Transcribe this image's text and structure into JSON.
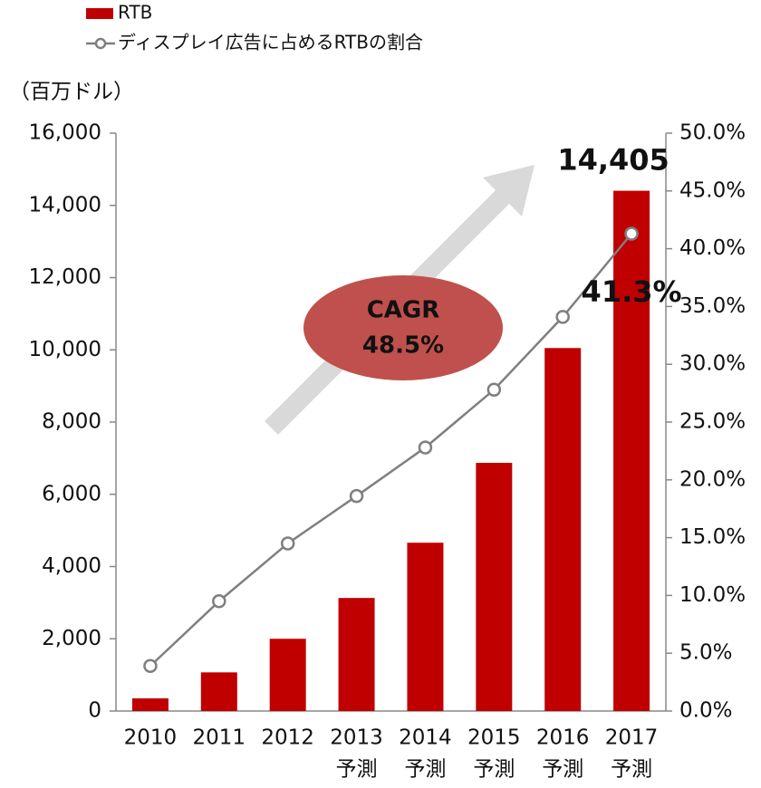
{
  "chart_data": {
    "type": "bar",
    "unit_label": "（百万ドル）",
    "categories": [
      [
        "2010"
      ],
      [
        "2011"
      ],
      [
        "2012"
      ],
      [
        "2013",
        "予測"
      ],
      [
        "2014",
        "予測"
      ],
      [
        "2015",
        "予測"
      ],
      [
        "2016",
        "予測"
      ],
      [
        "2017",
        "予測"
      ]
    ],
    "series": [
      {
        "name": "RTB",
        "type": "bar",
        "color": "#c00000",
        "values": [
          350,
          1070,
          2000,
          3130,
          4660,
          6870,
          10050,
          14405
        ],
        "value_labels": [
          null,
          null,
          null,
          null,
          null,
          null,
          null,
          "14,405"
        ]
      },
      {
        "name": "ディスプレイ広告に占めるRTBの割合",
        "type": "line",
        "axis": "y2",
        "color": "#7f7f7f",
        "values": [
          3.9,
          9.5,
          14.5,
          18.6,
          22.8,
          27.8,
          34.1,
          41.3
        ],
        "value_labels": [
          null,
          null,
          null,
          null,
          null,
          null,
          null,
          "41.3%"
        ]
      }
    ],
    "ylim": [
      0,
      16000
    ],
    "yticks": [
      0,
      {
        "value": 2000,
        "label": "2,000"
      },
      {
        "value": 4000,
        "label": "4,000"
      },
      {
        "value": 6000,
        "label": "6,000"
      },
      {
        "value": 8000,
        "label": "8,000"
      },
      {
        "value": 10000,
        "label": "10,000"
      },
      {
        "value": 12000,
        "label": "12,000"
      },
      {
        "value": 14000,
        "label": "14,000"
      },
      {
        "value": 16000,
        "label": "16,000"
      }
    ],
    "y2lim": [
      0,
      50
    ],
    "y2ticks": [
      {
        "value": 0,
        "label": "0.0%"
      },
      {
        "value": 5,
        "label": "5.0%"
      },
      {
        "value": 10,
        "label": "10.0%"
      },
      {
        "value": 15,
        "label": "15.0%"
      },
      {
        "value": 20,
        "label": "20.0%"
      },
      {
        "value": 25,
        "label": "25.0%"
      },
      {
        "value": 30,
        "label": "30.0%"
      },
      {
        "value": 35,
        "label": "35.0%"
      },
      {
        "value": 40,
        "label": "40.0%"
      },
      {
        "value": 45,
        "label": "45.0%"
      },
      {
        "value": 50,
        "label": "50.0%"
      }
    ],
    "annotations": [
      "CAGR",
      "48.5%"
    ]
  }
}
